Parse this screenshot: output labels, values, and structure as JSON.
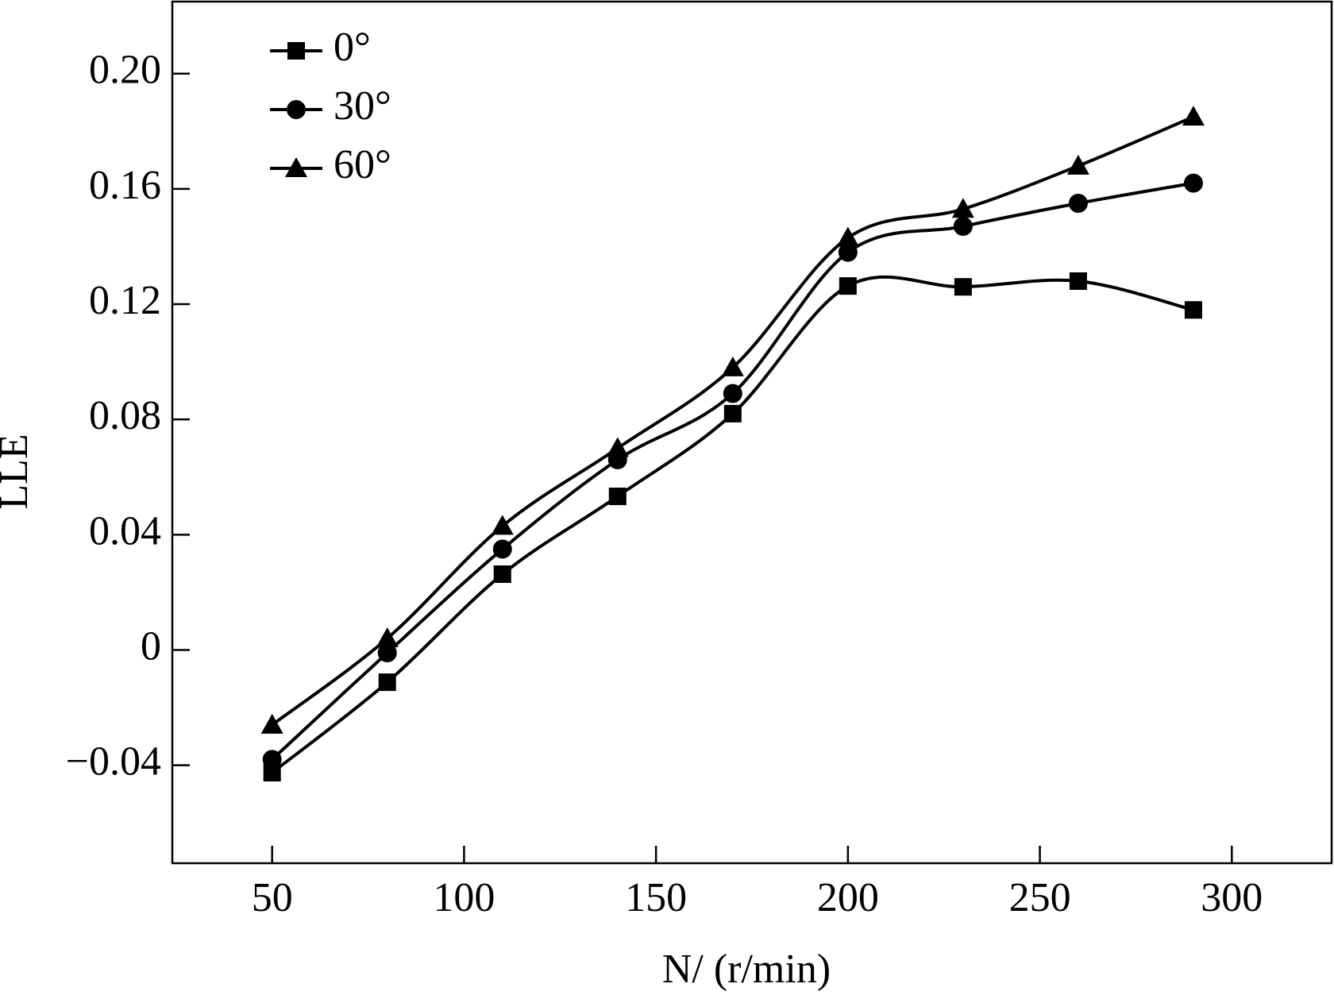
{
  "chart_data": {
    "type": "line",
    "smooth": true,
    "x_label": "N/ (r/min)",
    "y_label": "LLE",
    "x": [
      50,
      80,
      110,
      140,
      170,
      200,
      230,
      260,
      290
    ],
    "series": [
      {
        "name": "0°",
        "color": "#000000",
        "marker": "square",
        "values": [
          -0.0426,
          -0.0112,
          0.0263,
          0.0533,
          0.082,
          0.1263,
          0.126,
          0.128,
          0.118
        ]
      },
      {
        "name": "30°",
        "color": "#000000",
        "marker": "circle",
        "values": [
          -0.038,
          -0.001,
          0.035,
          0.066,
          0.089,
          0.138,
          0.147,
          0.155,
          0.162
        ]
      },
      {
        "name": "60°",
        "color": "#000000",
        "marker": "triangle",
        "values": [
          -0.026,
          0.004,
          0.043,
          0.07,
          0.098,
          0.143,
          0.153,
          0.168,
          0.185
        ]
      }
    ],
    "xlim": [
      24,
      326
    ],
    "xticks": [
      50,
      100,
      150,
      200,
      250,
      300
    ],
    "ylim": [
      -0.074,
      0.225
    ],
    "yticks": [
      {
        "value": -0.04,
        "label": "−0.04"
      },
      0,
      0.04,
      0.08,
      0.12,
      0.16,
      {
        "value": 0.2,
        "label": "0.20"
      }
    ],
    "legend": "upper left",
    "grid": false
  }
}
